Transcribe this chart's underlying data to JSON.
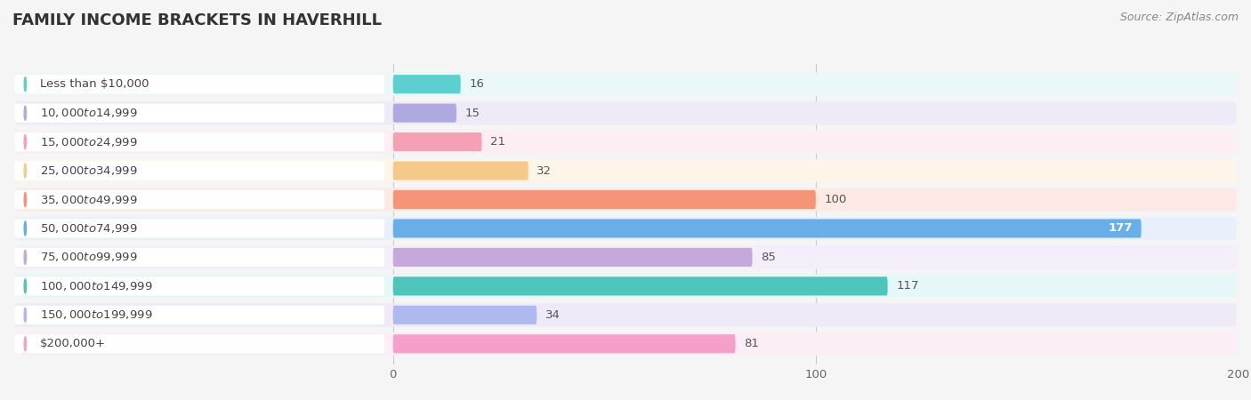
{
  "title": "FAMILY INCOME BRACKETS IN HAVERHILL",
  "source": "Source: ZipAtlas.com",
  "categories": [
    "Less than $10,000",
    "$10,000 to $14,999",
    "$15,000 to $24,999",
    "$25,000 to $34,999",
    "$35,000 to $49,999",
    "$50,000 to $74,999",
    "$75,000 to $99,999",
    "$100,000 to $149,999",
    "$150,000 to $199,999",
    "$200,000+"
  ],
  "values": [
    16,
    15,
    21,
    32,
    100,
    177,
    85,
    117,
    34,
    81
  ],
  "bar_colors": [
    "#5DCFCF",
    "#B0A8E0",
    "#F4A0B5",
    "#F5C98A",
    "#F4957A",
    "#6aaee8",
    "#C5A8DC",
    "#4EC5BB",
    "#B0B8F0",
    "#F4A0C8"
  ],
  "bg_colors": [
    "#EAF8F8",
    "#EEEAF8",
    "#FCEEF3",
    "#FDF5EA",
    "#FDEAE5",
    "#E8F0FB",
    "#F3EEF9",
    "#E5F7F6",
    "#EEEAF8",
    "#FCEEF6"
  ],
  "label_bg_color": "#f0f0f0",
  "xlim": [
    0,
    200
  ],
  "xticks": [
    0,
    100,
    200
  ],
  "title_fontsize": 13,
  "label_fontsize": 9.5,
  "value_fontsize": 9.5,
  "bar_height": 0.65,
  "background_color": "#f5f5f5",
  "row_sep_color": "#ffffff"
}
